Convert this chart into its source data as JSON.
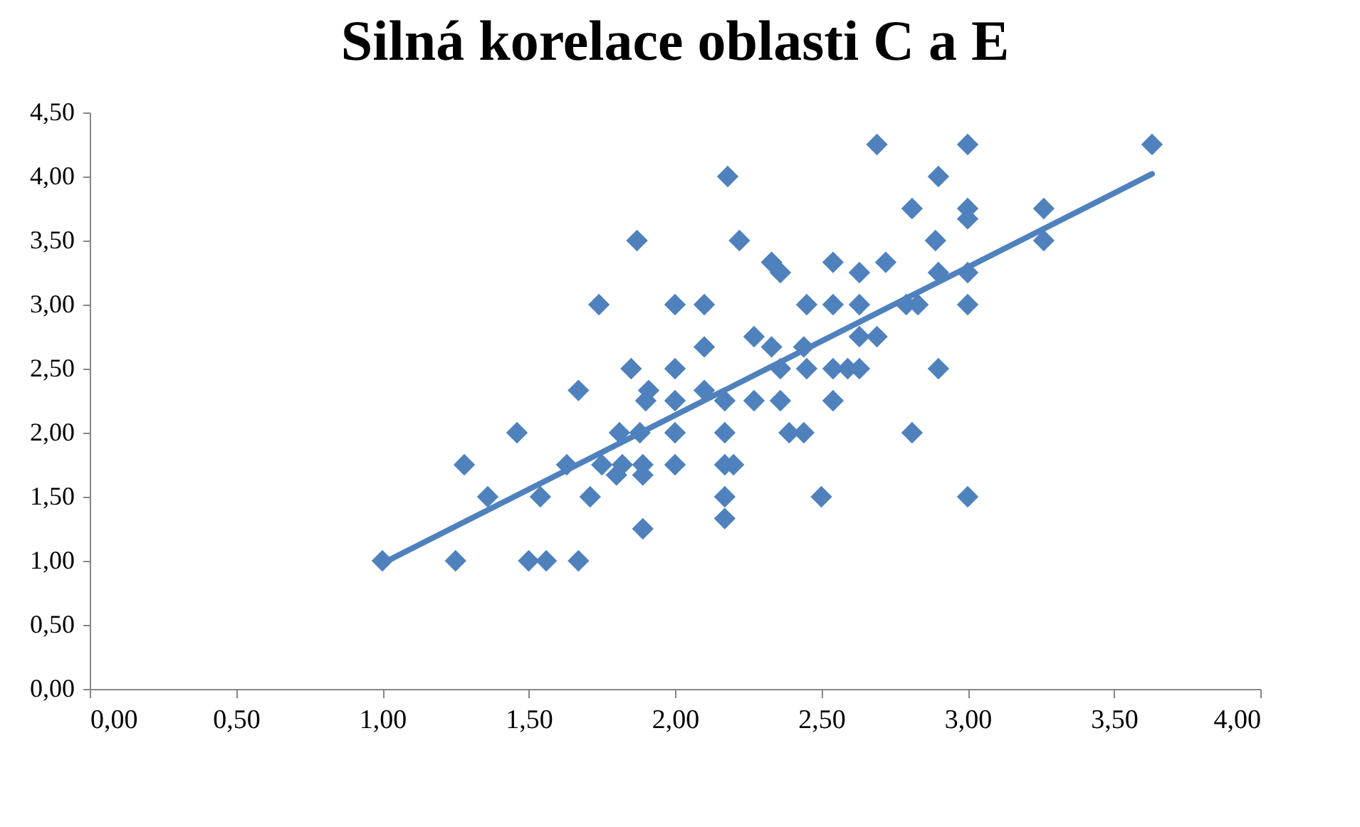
{
  "chart_data": {
    "type": "scatter",
    "title": "Silná korelace oblasti C a E",
    "marker": "diamond",
    "xlim": [
      0,
      4
    ],
    "ylim": [
      0,
      4.5
    ],
    "xticks": [
      {
        "value": 0,
        "label": "0,00"
      },
      {
        "value": 0.5,
        "label": "0,50"
      },
      {
        "value": 1,
        "label": "1,00"
      },
      {
        "value": 1.5,
        "label": "1,50"
      },
      {
        "value": 2,
        "label": "2,00"
      },
      {
        "value": 2.5,
        "label": "2,50"
      },
      {
        "value": 3,
        "label": "3,00"
      },
      {
        "value": 3.5,
        "label": "3,50"
      },
      {
        "value": 4,
        "label": "4,00"
      }
    ],
    "yticks": [
      {
        "value": 0,
        "label": "0,00"
      },
      {
        "value": 0.5,
        "label": "0,50"
      },
      {
        "value": 1,
        "label": "1,00"
      },
      {
        "value": 1.5,
        "label": "1,50"
      },
      {
        "value": 2,
        "label": "2,00"
      },
      {
        "value": 2.5,
        "label": "2,50"
      },
      {
        "value": 3,
        "label": "3,00"
      },
      {
        "value": 3.5,
        "label": "3,50"
      },
      {
        "value": 4,
        "label": "4,00"
      },
      {
        "value": 4.5,
        "label": "4,50"
      }
    ],
    "series": [
      {
        "color": "#4f81bd",
        "x": [
          1.0,
          1.25,
          1.5,
          1.56,
          1.67,
          1.89,
          1.36,
          1.54,
          1.71,
          2.17,
          2.5,
          3.0,
          2.17,
          1.28,
          1.63,
          1.75,
          1.82,
          1.89,
          1.8,
          1.89,
          2.0,
          2.17,
          2.2,
          1.46,
          1.81,
          1.88,
          2.0,
          2.17,
          2.39,
          2.44,
          2.81,
          1.67,
          1.91,
          2.1,
          1.9,
          2.0,
          2.17,
          2.27,
          2.36,
          2.54,
          1.85,
          2.0,
          2.36,
          2.45,
          2.54,
          2.59,
          2.63,
          2.9,
          2.1,
          2.33,
          2.44,
          2.27,
          2.63,
          2.69,
          1.74,
          2.0,
          2.1,
          2.45,
          2.54,
          2.63,
          2.79,
          2.83,
          3.0,
          2.36,
          2.63,
          2.9,
          3.0,
          2.33,
          2.54,
          2.72,
          1.87,
          2.22,
          2.89,
          3.26,
          2.81,
          3.0,
          3.26,
          3.0,
          2.18,
          2.9,
          2.69,
          3.0,
          3.63
        ],
        "values": [
          1.0,
          1.0,
          1.0,
          1.0,
          1.0,
          1.25,
          1.5,
          1.5,
          1.5,
          1.5,
          1.5,
          1.5,
          1.33,
          1.75,
          1.75,
          1.75,
          1.75,
          1.75,
          1.67,
          1.67,
          1.75,
          1.75,
          1.75,
          2.0,
          2.0,
          2.0,
          2.0,
          2.0,
          2.0,
          2.0,
          2.0,
          2.33,
          2.33,
          2.33,
          2.25,
          2.25,
          2.25,
          2.25,
          2.25,
          2.25,
          2.5,
          2.5,
          2.5,
          2.5,
          2.5,
          2.5,
          2.5,
          2.5,
          2.67,
          2.67,
          2.67,
          2.75,
          2.75,
          2.75,
          3.0,
          3.0,
          3.0,
          3.0,
          3.0,
          3.0,
          3.0,
          3.0,
          3.0,
          3.25,
          3.25,
          3.25,
          3.25,
          3.33,
          3.33,
          3.33,
          3.5,
          3.5,
          3.5,
          3.5,
          3.75,
          3.75,
          3.75,
          3.67,
          4.0,
          4.0,
          4.25,
          4.25,
          4.25
        ]
      },
      {
        "type": "line",
        "marker": "none",
        "color": "#4f81bd",
        "x": [
          1.0,
          3.63
        ],
        "values": [
          0.98,
          4.02
        ]
      }
    ]
  }
}
